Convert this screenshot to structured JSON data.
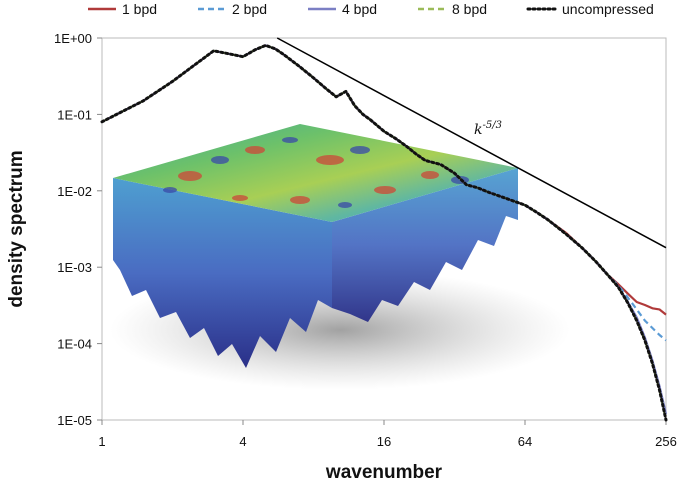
{
  "chart_data": {
    "type": "line",
    "xlabel": "wavenumber",
    "ylabel": "density spectrum",
    "xscale": "log2",
    "yscale": "log10",
    "xlim": [
      1,
      256
    ],
    "ylim": [
      1e-05,
      1
    ],
    "x_ticks": [
      1,
      4,
      16,
      64,
      256
    ],
    "x_tick_labels": [
      "1",
      "4",
      "16",
      "64",
      "256"
    ],
    "y_ticks": [
      1,
      0.1,
      0.01,
      0.001,
      0.0001,
      1e-05
    ],
    "y_tick_labels": [
      "1E+00",
      "1E-01",
      "1E-02",
      "1E-03",
      "1E-04",
      "1E-05"
    ],
    "grid": false,
    "legend_position": "top",
    "x": [
      1,
      1.5,
      2,
      2.5,
      3,
      3.5,
      4,
      4.5,
      5,
      5.5,
      6,
      7,
      8,
      9,
      10,
      11,
      12,
      13,
      14,
      16,
      18,
      20,
      22,
      24,
      28,
      32,
      36,
      40,
      45,
      50,
      56,
      64,
      72,
      80,
      96,
      112,
      128,
      144,
      160,
      176,
      192,
      208,
      224,
      240,
      256
    ],
    "series": [
      {
        "name": "1 bpd",
        "color": "#b03a3a",
        "dash": "solid",
        "values": [
          0.08,
          0.15,
          0.27,
          0.45,
          0.68,
          0.62,
          0.57,
          0.7,
          0.8,
          0.72,
          0.6,
          0.42,
          0.3,
          0.22,
          0.17,
          0.2,
          0.13,
          0.1,
          0.085,
          0.06,
          0.048,
          0.038,
          0.03,
          0.025,
          0.022,
          0.017,
          0.012,
          0.011,
          0.0095,
          0.0085,
          0.0075,
          0.0065,
          0.0052,
          0.0042,
          0.0028,
          0.0018,
          0.0012,
          0.0008,
          0.0006,
          0.00045,
          0.00035,
          0.00032,
          0.00029,
          0.00028,
          0.00024
        ]
      },
      {
        "name": "2 bpd",
        "color": "#5b9bd5",
        "dash": "dashed",
        "values": [
          0.08,
          0.15,
          0.27,
          0.45,
          0.68,
          0.62,
          0.57,
          0.7,
          0.8,
          0.72,
          0.6,
          0.42,
          0.3,
          0.22,
          0.17,
          0.2,
          0.13,
          0.1,
          0.085,
          0.06,
          0.048,
          0.038,
          0.03,
          0.025,
          0.022,
          0.017,
          0.012,
          0.011,
          0.0095,
          0.0085,
          0.0075,
          0.0065,
          0.0052,
          0.0042,
          0.0027,
          0.0018,
          0.0012,
          0.0008,
          0.00058,
          0.0004,
          0.00028,
          0.0002,
          0.00016,
          0.00013,
          0.00011
        ]
      },
      {
        "name": "4 bpd",
        "color": "#7b7fc4",
        "dash": "solid",
        "values": [
          0.08,
          0.15,
          0.27,
          0.45,
          0.68,
          0.62,
          0.57,
          0.7,
          0.8,
          0.72,
          0.6,
          0.42,
          0.3,
          0.22,
          0.17,
          0.2,
          0.13,
          0.1,
          0.085,
          0.06,
          0.048,
          0.038,
          0.03,
          0.025,
          0.022,
          0.017,
          0.012,
          0.011,
          0.0095,
          0.0085,
          0.0075,
          0.0065,
          0.0052,
          0.0042,
          0.0027,
          0.0018,
          0.0012,
          0.0008,
          0.00056,
          0.00035,
          0.00022,
          0.00012,
          6e-05,
          2.8e-05,
          1.2e-05
        ]
      },
      {
        "name": "8 bpd",
        "color": "#9bbb59",
        "dash": "dashed",
        "values": [
          0.08,
          0.15,
          0.27,
          0.45,
          0.68,
          0.62,
          0.57,
          0.7,
          0.8,
          0.72,
          0.6,
          0.42,
          0.3,
          0.22,
          0.17,
          0.2,
          0.13,
          0.1,
          0.085,
          0.06,
          0.048,
          0.038,
          0.03,
          0.025,
          0.022,
          0.017,
          0.012,
          0.011,
          0.0095,
          0.0085,
          0.0075,
          0.0065,
          0.0052,
          0.0042,
          0.0027,
          0.0018,
          0.0012,
          0.0008,
          0.00055,
          0.00034,
          0.0002,
          0.00011,
          5.5e-05,
          2.5e-05,
          1e-05
        ]
      },
      {
        "name": "uncompressed",
        "color": "#111111",
        "dash": "dotted",
        "values": [
          0.08,
          0.15,
          0.27,
          0.45,
          0.68,
          0.62,
          0.57,
          0.7,
          0.8,
          0.72,
          0.6,
          0.42,
          0.3,
          0.22,
          0.17,
          0.2,
          0.13,
          0.1,
          0.085,
          0.06,
          0.048,
          0.038,
          0.03,
          0.025,
          0.022,
          0.017,
          0.012,
          0.011,
          0.0095,
          0.0085,
          0.0075,
          0.0065,
          0.0052,
          0.0042,
          0.0027,
          0.0018,
          0.0012,
          0.0008,
          0.00055,
          0.00034,
          0.0002,
          0.00011,
          5.5e-05,
          2.5e-05,
          1e-05
        ]
      }
    ],
    "reference_line": {
      "label_base": "k",
      "label_exponent": "-5/3",
      "color": "#000000",
      "x": [
        5.6,
        256
      ],
      "y": [
        1.0,
        0.0018
      ]
    },
    "inset": {
      "description_icon": "turbulence-volume-render-icon"
    }
  }
}
